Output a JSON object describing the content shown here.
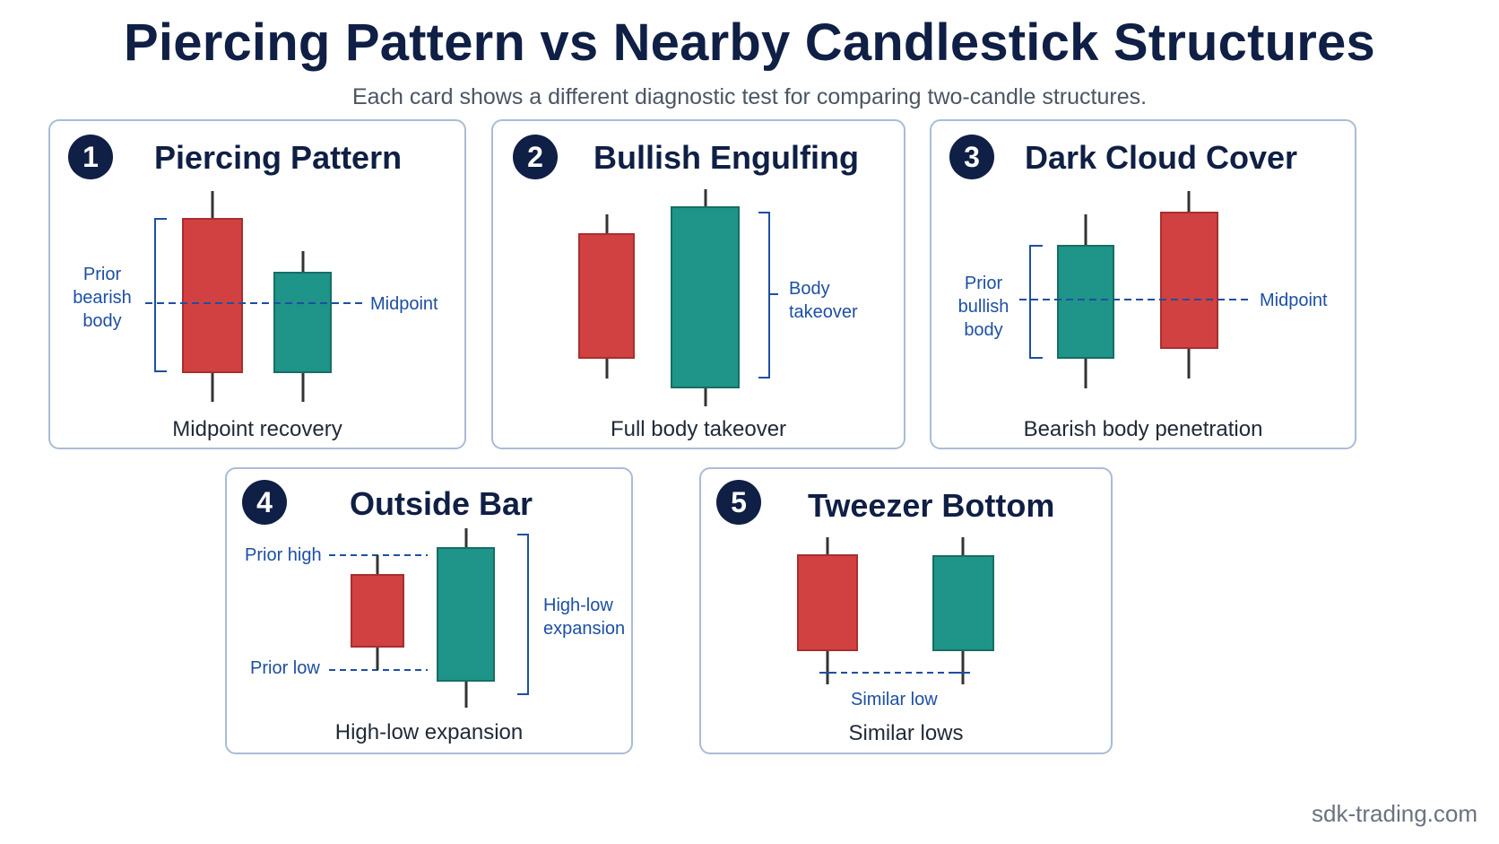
{
  "header": {
    "title": "Piercing Pattern vs Nearby Candlestick Structures",
    "subtitle": "Each card shows a different diagnostic test for comparing two-candle structures."
  },
  "colors": {
    "bearish": "#d14141",
    "bullish": "#1f9488",
    "annotation": "#1d4fa3",
    "navy": "#0f1f45",
    "card_border": "#a9bcd6"
  },
  "cards": [
    {
      "number": "1",
      "title": "Piercing Pattern",
      "caption": "Midpoint recovery",
      "labels": {
        "body_line1": "Prior",
        "body_line2": "bearish",
        "body_line3": "body",
        "midpoint": "Midpoint"
      }
    },
    {
      "number": "2",
      "title": "Bullish Engulfing",
      "caption": "Full body takeover",
      "labels": {
        "takeover_line1": "Body",
        "takeover_line2": "takeover"
      }
    },
    {
      "number": "3",
      "title": "Dark Cloud Cover",
      "caption": "Bearish body penetration",
      "labels": {
        "body_line1": "Prior",
        "body_line2": "bullish",
        "body_line3": "body",
        "midpoint": "Midpoint"
      }
    },
    {
      "number": "4",
      "title": "Outside Bar",
      "caption": "High-low expansion",
      "labels": {
        "prior_high": "Prior high",
        "prior_low": "Prior low",
        "expansion_line1": "High-low",
        "expansion_line2": "expansion"
      }
    },
    {
      "number": "5",
      "title": "Tweezer Bottom",
      "caption": "Similar lows",
      "labels": {
        "similar_low": "Similar low"
      }
    }
  ],
  "footer": {
    "site": "sdk-trading.com"
  }
}
